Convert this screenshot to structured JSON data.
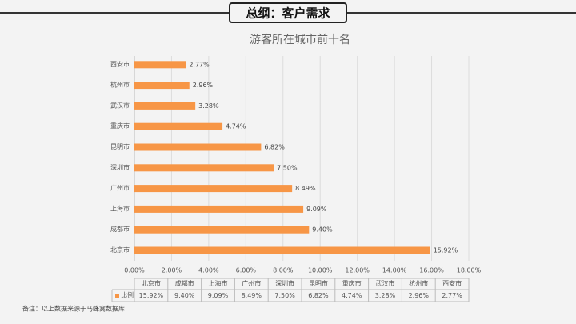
{
  "header": {
    "title": "总纲：客户需求"
  },
  "footnote": "备注：以上数据来源于马蜂窝数据库",
  "chart_data": {
    "type": "hbar",
    "title": "游客所在城市前十名",
    "categories": [
      "北京市",
      "成都市",
      "上海市",
      "广州市",
      "深圳市",
      "昆明市",
      "重庆市",
      "武汉市",
      "杭州市",
      "西安市"
    ],
    "series": [
      {
        "name": "比例",
        "color": "#f79646",
        "values": [
          15.92,
          9.4,
          9.09,
          8.49,
          7.5,
          6.82,
          4.74,
          3.28,
          2.96,
          2.77
        ],
        "value_labels": [
          "15.92%",
          "9.40%",
          "9.09%",
          "8.49%",
          "7.50%",
          "6.82%",
          "4.74%",
          "3.28%",
          "2.96%",
          "2.77%"
        ]
      }
    ],
    "xlim": [
      0,
      18
    ],
    "xticks": [
      {
        "value": 0,
        "label": "0.00%"
      },
      {
        "value": 2,
        "label": "2.00%"
      },
      {
        "value": 4,
        "label": "4.00%"
      },
      {
        "value": 6,
        "label": "6.00%"
      },
      {
        "value": 8,
        "label": "8.00%"
      },
      {
        "value": 10,
        "label": "10.00%"
      },
      {
        "value": 12,
        "label": "12.00%"
      },
      {
        "value": 14,
        "label": "14.00%"
      },
      {
        "value": 16,
        "label": "16.00%"
      },
      {
        "value": 18,
        "label": "18.00%"
      }
    ],
    "grid": true
  }
}
